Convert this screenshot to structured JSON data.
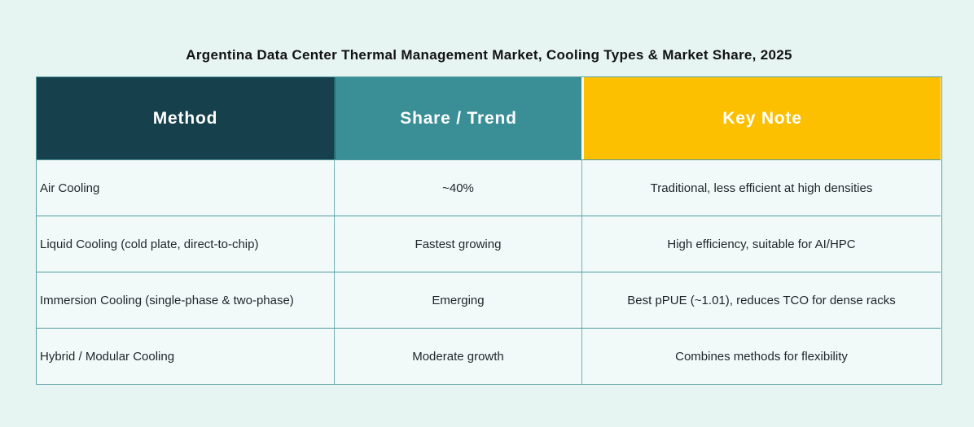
{
  "title": "Argentina Data Center Thermal Management Market, Cooling Types & Market Share, 2025",
  "colors": {
    "page_bg": "#e7f5f2",
    "cell_bg": "#f1faf9",
    "header_method_bg": "#16404b",
    "header_share_bg": "#3a8e96",
    "header_keynote_bg": "#fcc000",
    "header_text": "#ffffff",
    "body_text": "#1f2527",
    "border_h": "#4d989e",
    "border_v": "#72b2b5",
    "border_outer": "#5aa2a6"
  },
  "chart_data": {
    "type": "table",
    "title": "Argentina Data Center Thermal Management Market, Cooling Types & Market Share, 2025",
    "columns": [
      "Method",
      "Share / Trend",
      "Key Note"
    ],
    "rows": [
      [
        "Air Cooling",
        "~40%",
        "Traditional, less efficient at high densities"
      ],
      [
        "Liquid Cooling (cold plate, direct-to-chip)",
        "Fastest growing",
        "High efficiency, suitable for AI/HPC"
      ],
      [
        "Immersion Cooling (single-phase & two-phase)",
        "Emerging",
        "Best pPUE (~1.01), reduces TCO for dense racks"
      ],
      [
        "Hybrid / Modular Cooling",
        "Moderate growth",
        "Combines methods for flexibility"
      ]
    ],
    "layout": {
      "legend": "none",
      "grid": "on",
      "column_alignment": [
        "left",
        "center",
        "center"
      ]
    }
  }
}
